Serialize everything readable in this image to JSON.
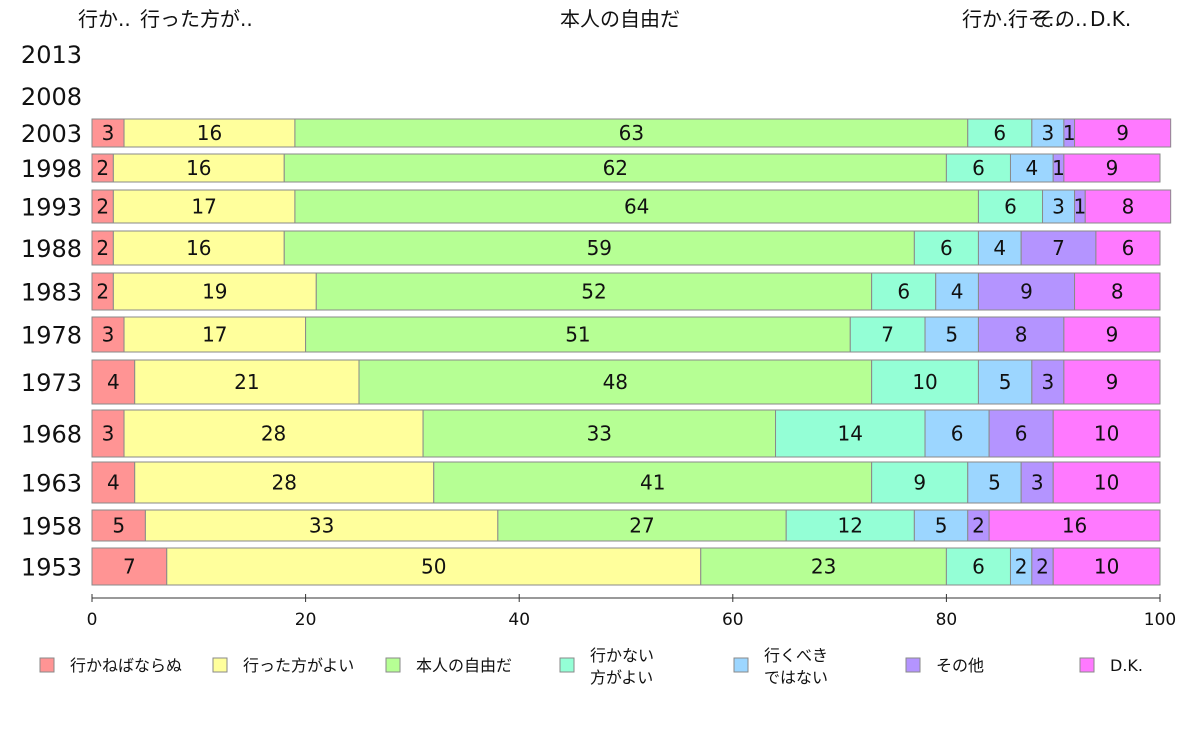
{
  "chart_data": {
    "type": "bar",
    "orientation": "horizontal",
    "stacked": true,
    "xlim": [
      0,
      100
    ],
    "x_ticks": [
      0,
      20,
      40,
      60,
      80,
      100
    ],
    "categories": [
      "2013",
      "2008",
      "2003",
      "1998",
      "1993",
      "1988",
      "1983",
      "1978",
      "1973",
      "1968",
      "1963",
      "1958",
      "1953"
    ],
    "top_labels": [
      "行か..",
      "行った方が..",
      "本人の自由だ",
      "行か..",
      "行そ..",
      "その..",
      "D.K."
    ],
    "series": [
      {
        "name": "行かねばならぬ",
        "legend_lines": [
          "行かねばならぬ"
        ],
        "color": "#ff9494",
        "values": [
          null,
          null,
          3,
          2,
          2,
          2,
          2,
          3,
          4,
          3,
          4,
          5,
          7
        ]
      },
      {
        "name": "行った方がよい",
        "legend_lines": [
          "行った方がよい"
        ],
        "color": "#ffff9c",
        "values": [
          null,
          null,
          16,
          16,
          17,
          16,
          19,
          17,
          21,
          28,
          28,
          33,
          50
        ]
      },
      {
        "name": "本人の自由だ",
        "legend_lines": [
          "本人の自由だ"
        ],
        "color": "#b6ff94",
        "values": [
          null,
          null,
          63,
          62,
          64,
          59,
          52,
          51,
          48,
          33,
          41,
          27,
          23
        ]
      },
      {
        "name": "行かない方がよい",
        "legend_lines": [
          "行かない",
          "方がよい"
        ],
        "color": "#94ffd6",
        "values": [
          null,
          null,
          6,
          6,
          6,
          6,
          6,
          7,
          10,
          14,
          9,
          12,
          6
        ]
      },
      {
        "name": "行くべきではない",
        "legend_lines": [
          "行くべき",
          "ではない"
        ],
        "color": "#9cd6ff",
        "values": [
          null,
          null,
          3,
          4,
          3,
          4,
          4,
          5,
          5,
          6,
          5,
          5,
          2
        ]
      },
      {
        "name": "その他",
        "legend_lines": [
          "その他"
        ],
        "color": "#b494ff",
        "values": [
          null,
          null,
          1,
          1,
          1,
          7,
          9,
          8,
          3,
          6,
          3,
          2,
          2
        ]
      },
      {
        "name": "D.K.",
        "legend_lines": [
          "D.K."
        ],
        "color": "#ff79ff",
        "values": [
          null,
          null,
          9,
          9,
          8,
          6,
          8,
          9,
          9,
          10,
          10,
          16,
          10
        ]
      }
    ]
  }
}
